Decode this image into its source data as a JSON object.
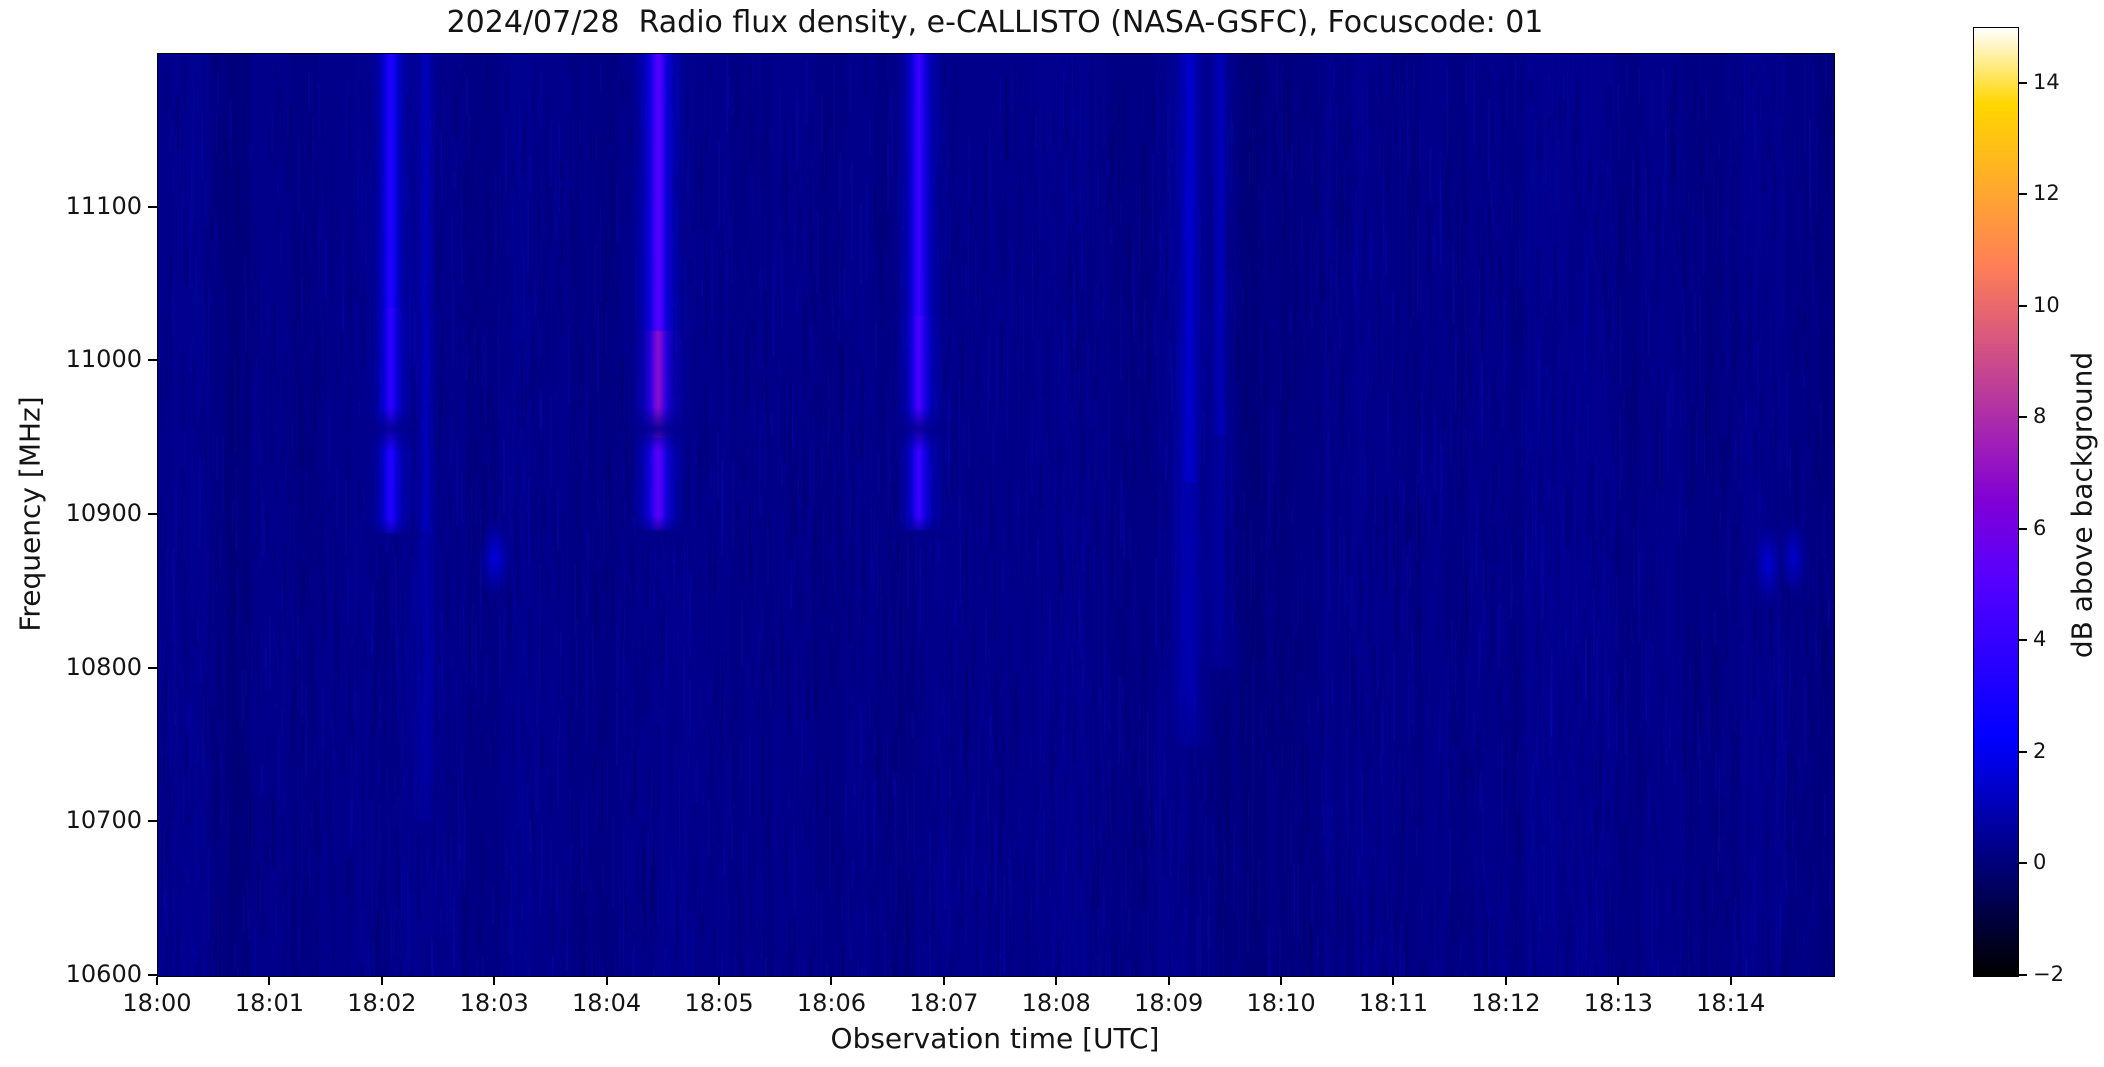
{
  "title": "2024/07/28  Radio flux density, e-CALLISTO (NASA-GSFC), Focuscode: 01",
  "chart_data": {
    "type": "heatmap",
    "subtype": "radio_spectrogram",
    "title": "2024/07/28  Radio flux density, e-CALLISTO (NASA-GSFC), Focuscode: 01",
    "xlabel": "Observation time [UTC]",
    "ylabel": "Frequency [MHz]",
    "colorbar_label": "dB above background",
    "grid": false,
    "x_total_minutes": 14.91,
    "x_ticks": [
      {
        "minute": 0,
        "label": "18:00"
      },
      {
        "minute": 1,
        "label": "18:01"
      },
      {
        "minute": 2,
        "label": "18:02"
      },
      {
        "minute": 3,
        "label": "18:03"
      },
      {
        "minute": 4,
        "label": "18:04"
      },
      {
        "minute": 5,
        "label": "18:05"
      },
      {
        "minute": 6,
        "label": "18:06"
      },
      {
        "minute": 7,
        "label": "18:07"
      },
      {
        "minute": 8,
        "label": "18:08"
      },
      {
        "minute": 9,
        "label": "18:09"
      },
      {
        "minute": 10,
        "label": "18:10"
      },
      {
        "minute": 11,
        "label": "18:11"
      },
      {
        "minute": 12,
        "label": "18:12"
      },
      {
        "minute": 13,
        "label": "18:13"
      },
      {
        "minute": 14,
        "label": "18:14"
      }
    ],
    "y_min_mhz": 10600,
    "y_max_mhz": 11200,
    "y_ticks_mhz": [
      11100,
      11000,
      10900,
      10800,
      10700,
      10600
    ],
    "colorbar": {
      "vmin": -2,
      "vmax": 15,
      "colormap": "gnuplot2",
      "colormap_stops_hex": [
        "#000000",
        "#000078",
        "#0000ff",
        "#3400ff",
        "#7000e5",
        "#ac2da9",
        "#e8696d",
        "#ffa531",
        "#ffe144",
        "#ffffff"
      ],
      "ticks": [
        {
          "value": 14,
          "label": "14"
        },
        {
          "value": 12,
          "label": "12"
        },
        {
          "value": 10,
          "label": "10"
        },
        {
          "value": 8,
          "label": "8"
        },
        {
          "value": 6,
          "label": "6"
        },
        {
          "value": 4,
          "label": "4"
        },
        {
          "value": 2,
          "label": "2"
        },
        {
          "value": 0,
          "label": "0"
        },
        {
          "value": -2,
          "label": "−2"
        }
      ]
    },
    "background_level_db": 0.3,
    "features": {
      "bursts": [
        {
          "time_min": 2.07,
          "core_width_min": 0.09,
          "glow_width_min": 0.42,
          "segments": [
            {
              "f_hi": 11200,
              "f_lo": 11035,
              "peak_db": 3.4
            },
            {
              "f_hi": 11035,
              "f_lo": 10950,
              "peak_db": 3.9
            },
            {
              "f_hi": 10950,
              "f_lo": 10888,
              "peak_db": 3.5
            }
          ],
          "notch_f_hi": 10966,
          "notch_f_lo": 10946
        },
        {
          "time_min": 4.45,
          "core_width_min": 0.1,
          "glow_width_min": 0.48,
          "segments": [
            {
              "f_hi": 11200,
              "f_lo": 11020,
              "peak_db": 5.2
            },
            {
              "f_hi": 11020,
              "f_lo": 10950,
              "peak_db": 7.0
            },
            {
              "f_hi": 10950,
              "f_lo": 10890,
              "peak_db": 5.4
            }
          ],
          "notch_f_hi": 10966,
          "notch_f_lo": 10946
        },
        {
          "time_min": 6.77,
          "core_width_min": 0.09,
          "glow_width_min": 0.44,
          "segments": [
            {
              "f_hi": 11200,
              "f_lo": 11030,
              "peak_db": 4.3
            },
            {
              "f_hi": 11030,
              "f_lo": 10950,
              "peak_db": 4.9
            },
            {
              "f_hi": 10950,
              "f_lo": 10890,
              "peak_db": 4.3
            }
          ],
          "notch_f_hi": 10966,
          "notch_f_lo": 10946
        }
      ],
      "faint_bands": [
        {
          "time_min": 2.38,
          "peak_db": 1.3,
          "width_min": 0.14,
          "f_hi": 11200,
          "f_lo": 10700
        },
        {
          "time_min": 9.18,
          "peak_db": 1.9,
          "width_min": 0.26,
          "f_hi": 11200,
          "f_lo": 10750
        },
        {
          "time_min": 9.45,
          "peak_db": 1.4,
          "width_min": 0.2,
          "f_hi": 11200,
          "f_lo": 10800
        }
      ],
      "blobs": [
        {
          "time_min": 3.0,
          "freq_mhz": 10872,
          "peak_db": 2.4,
          "width_min": 0.18,
          "height_mhz": 45
        },
        {
          "time_min": 14.32,
          "freq_mhz": 10868,
          "peak_db": 2.1,
          "width_min": 0.15,
          "height_mhz": 52
        },
        {
          "time_min": 14.55,
          "freq_mhz": 10872,
          "peak_db": 1.9,
          "width_min": 0.14,
          "height_mhz": 45
        }
      ]
    }
  }
}
